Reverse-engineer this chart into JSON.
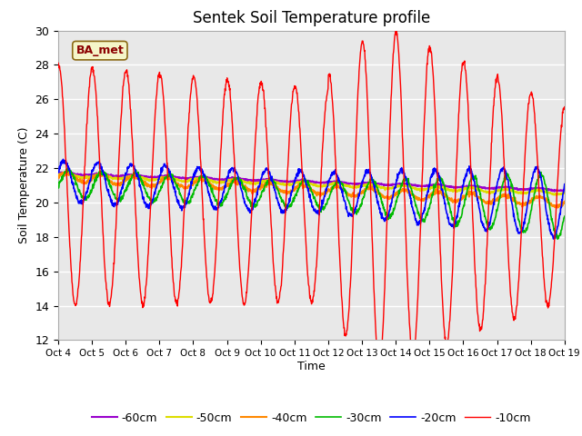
{
  "title": "Sentek Soil Temperature profile",
  "xlabel": "Time",
  "ylabel": "Soil Temperature (C)",
  "ylim": [
    12,
    30
  ],
  "yticks": [
    12,
    14,
    16,
    18,
    20,
    22,
    24,
    26,
    28,
    30
  ],
  "legend_label": "BA_met",
  "series_labels": [
    "-10cm",
    "-20cm",
    "-30cm",
    "-40cm",
    "-50cm",
    "-60cm"
  ],
  "series_colors": [
    "#ff0000",
    "#0000ff",
    "#00bb00",
    "#ff8800",
    "#dddd00",
    "#9900cc"
  ],
  "bg_color": "#e8e8e8",
  "n_days": 15,
  "n_points": 1440,
  "tick_days": [
    0,
    1,
    2,
    3,
    4,
    5,
    6,
    7,
    8,
    9,
    10,
    11,
    12,
    13,
    14,
    15
  ],
  "tick_labels": [
    "Oct 4",
    "Oct 5",
    "Oct 6",
    "Oct 7",
    "Oct 8",
    "Oct 9",
    "Oct 10",
    "Oct 11",
    "Oct 12",
    "Oct 13",
    "Oct 14",
    "Oct 15",
    "Oct 16",
    "Oct 17",
    "Oct 18",
    "Oct 19"
  ]
}
